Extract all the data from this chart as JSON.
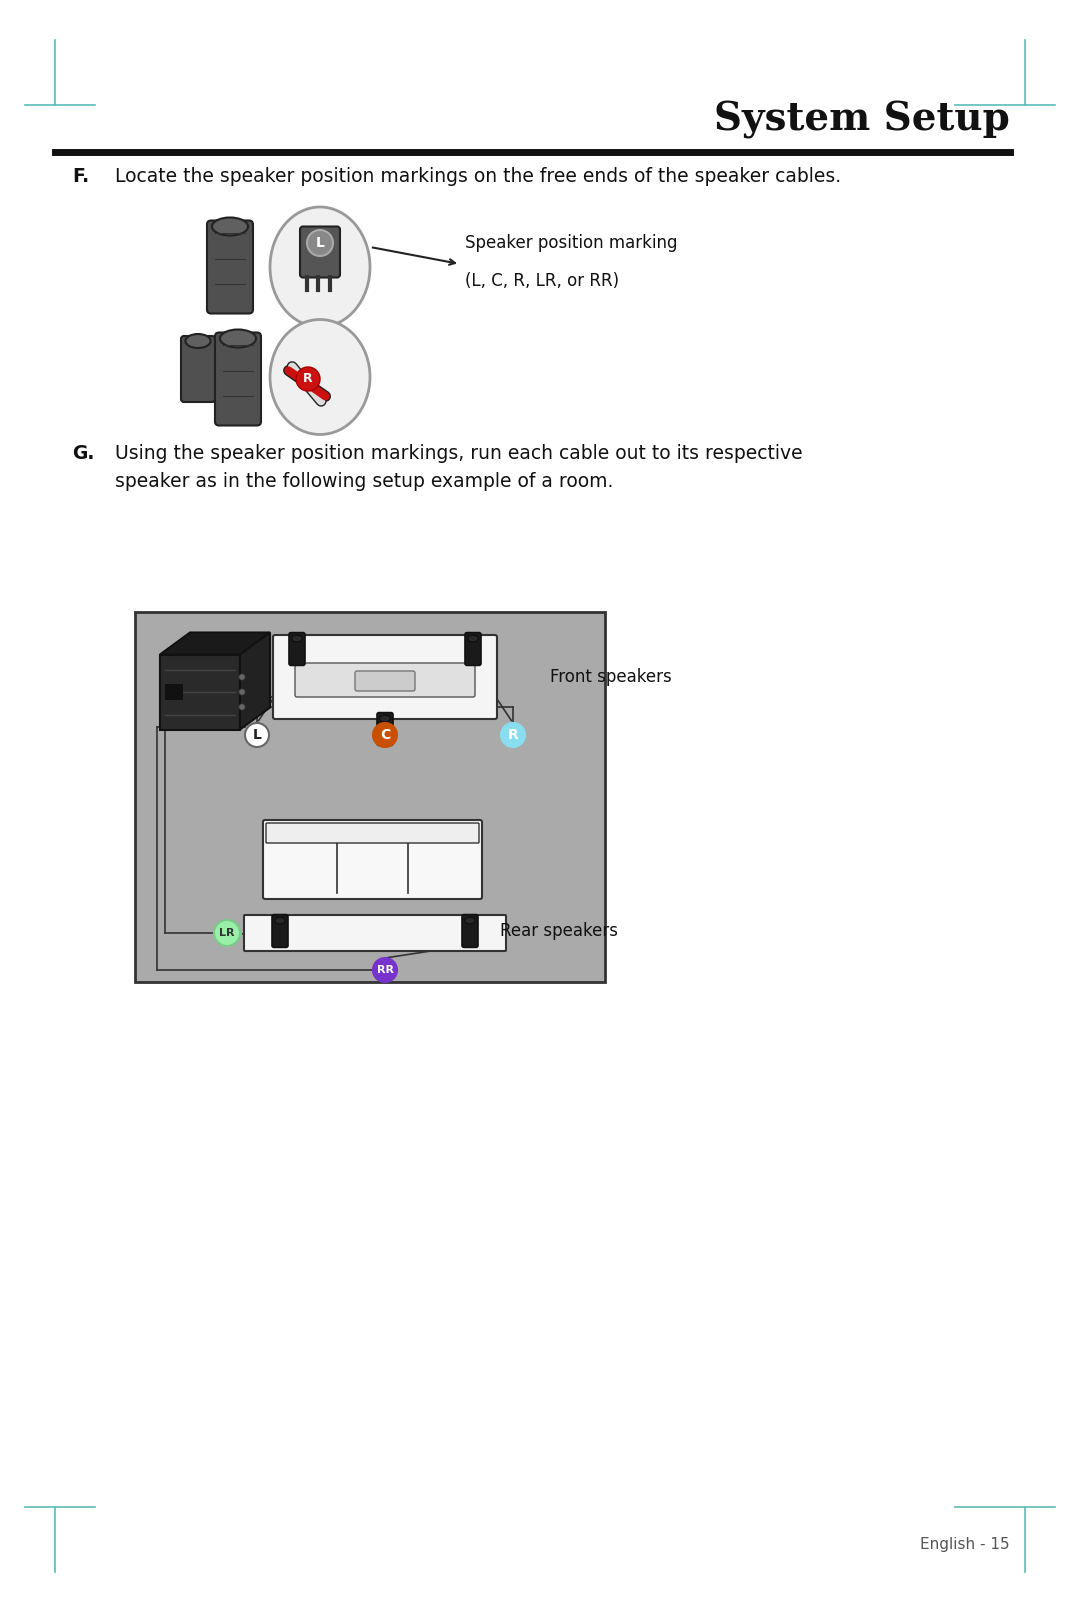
{
  "title": "System Setup",
  "title_fontsize": 28,
  "bg_color": "#ffffff",
  "page_margin_color": "#5bbcb8",
  "step_f_label": "F.",
  "step_f_text": "Locate the speaker position markings on the free ends of the speaker cables.",
  "step_g_label": "G.",
  "step_g_text1": "Using the speaker position markings, run each cable out to its respective",
  "step_g_text2": "speaker as in the following setup example of a room.",
  "annotation_line1": "Speaker position marking",
  "annotation_line2": "(L, C, R, LR, or RR)",
  "front_speakers_label": "Front speakers",
  "rear_speakers_label": "Rear speakers",
  "footer_text": "English - 15",
  "room_bg": "#aaaaaa",
  "room_border": "#333333",
  "label_L_color": "#ffffff",
  "label_L_border": "#555555",
  "label_C_color": "#c85000",
  "label_C_text_color": "#ffffff",
  "label_R_color": "#88ddee",
  "label_R_text_color": "#ffffff",
  "label_LR_color": "#99eeaa",
  "label_LR_text_color": "#333333",
  "label_RR_color": "#7733cc",
  "label_RR_text_color": "#ffffff",
  "teal": "#5bbcb8"
}
